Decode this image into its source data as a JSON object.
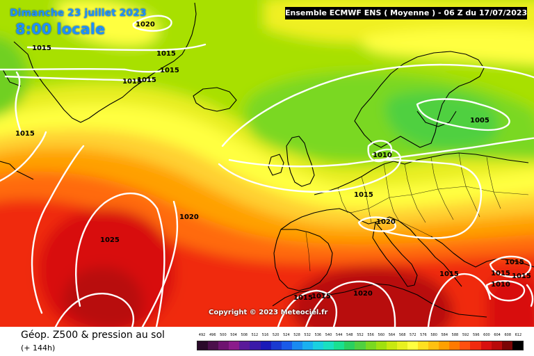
{
  "header": {
    "date": "Dimanche 23 juillet 2023",
    "time": "8:00 locale",
    "model": "Ensemble ECMWF ENS  ( Moyenne )  -  06 Z du 17/07/2023"
  },
  "copyright": "Copyright © 2023 Meteociel.fr",
  "footer": {
    "product": "Géop. Z500 & pression au sol",
    "forecast_hour": "(+ 144h)"
  },
  "scale": {
    "labels": [
      "492",
      "496",
      "500",
      "504",
      "508",
      "512",
      "516",
      "520",
      "524",
      "528",
      "532",
      "536",
      "540",
      "544",
      "548",
      "552",
      "556",
      "560",
      "564",
      "568",
      "572",
      "576",
      "580",
      "584",
      "588",
      "592",
      "596",
      "600",
      "604",
      "608",
      "612"
    ],
    "colors": [
      "#2a0a2a",
      "#4b0f4b",
      "#6e1470",
      "#8b1c8b",
      "#5a1a9a",
      "#3a1aa8",
      "#1a1ab8",
      "#1a3ad0",
      "#1a5ae8",
      "#1a8af0",
      "#1ab0f0",
      "#1ad0e0",
      "#1ae0c0",
      "#1ae090",
      "#2ad060",
      "#50d040",
      "#7ad820",
      "#a0e010",
      "#c8e810",
      "#e8f020",
      "#ffff40",
      "#ffe020",
      "#ffc010",
      "#ffa000",
      "#ff7a00",
      "#ff5010",
      "#f02a10",
      "#d81010",
      "#b80a0a",
      "#7a0505",
      "#000000"
    ]
  },
  "map": {
    "isobar_labels": [
      "1020",
      "1015",
      "1015",
      "1015",
      "1015",
      "1015",
      "1015",
      "1010",
      "1005",
      "1015",
      "1020",
      "1020",
      "1025",
      "1015",
      "1015",
      "1020",
      "1015",
      "1015",
      "1015",
      "1010",
      "1015"
    ]
  }
}
